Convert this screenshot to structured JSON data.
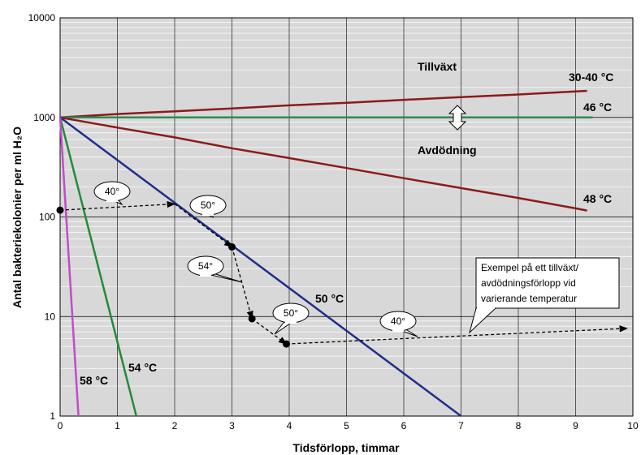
{
  "chart_data": {
    "type": "line",
    "xlabel": "Tidsförlopp, timmar",
    "ylabel": "Antal bakteriekolonier per ml H₂O",
    "x_ticks": [
      "0",
      "1",
      "2",
      "3",
      "4",
      "5",
      "6",
      "7",
      "8",
      "9",
      "10"
    ],
    "y_ticks": [
      "1",
      "10",
      "100",
      "1000",
      "10000"
    ],
    "xlim": [
      0,
      10
    ],
    "ylim": [
      1,
      10000
    ],
    "y_scale": "log",
    "grid": true,
    "series": [
      {
        "name": "30-40 °C",
        "color": "#8B1A1A",
        "x": [
          0,
          1,
          2,
          3,
          4,
          5,
          6,
          7,
          8,
          9,
          9.2
        ],
        "y": [
          1000,
          1080,
          1150,
          1230,
          1320,
          1400,
          1500,
          1600,
          1700,
          1820,
          1850
        ]
      },
      {
        "name": "46 °C",
        "color": "#2E8B57",
        "x": [
          0,
          9.3
        ],
        "y": [
          1000,
          1000
        ]
      },
      {
        "name": "48 °C",
        "color": "#8B1A1A",
        "x": [
          0,
          1,
          2,
          3,
          4,
          5,
          6,
          7,
          8,
          9,
          9.2
        ],
        "y": [
          1000,
          790,
          630,
          490,
          390,
          310,
          245,
          195,
          155,
          122,
          116
        ]
      },
      {
        "name": "50 °C",
        "color": "#1F2E8A",
        "x": [
          0,
          7
        ],
        "y": [
          1000,
          1
        ]
      },
      {
        "name": "54 °C",
        "color": "#228B3A",
        "x": [
          0,
          1.33
        ],
        "y": [
          1000,
          1
        ]
      },
      {
        "name": "58 °C",
        "color": "#C24CC8",
        "x": [
          0,
          0.32
        ],
        "y": [
          1000,
          1
        ]
      }
    ],
    "example_path": {
      "points": [
        [
          0,
          117
        ],
        [
          2.0,
          135
        ],
        [
          3.0,
          50
        ],
        [
          3.35,
          9.5
        ],
        [
          3.95,
          5.3
        ],
        [
          9.9,
          7.6
        ]
      ],
      "bubbles": [
        "40°",
        "50°",
        "54°",
        "50°",
        "40°"
      ]
    },
    "annotations": {
      "tillvaxt": "Tillväxt",
      "avdodning": "Avdödning",
      "example_line1": "Exempel på ett tillväxt/",
      "example_line2": "avdödningsförlopp vid",
      "example_line3": "varierande temperatur"
    }
  }
}
